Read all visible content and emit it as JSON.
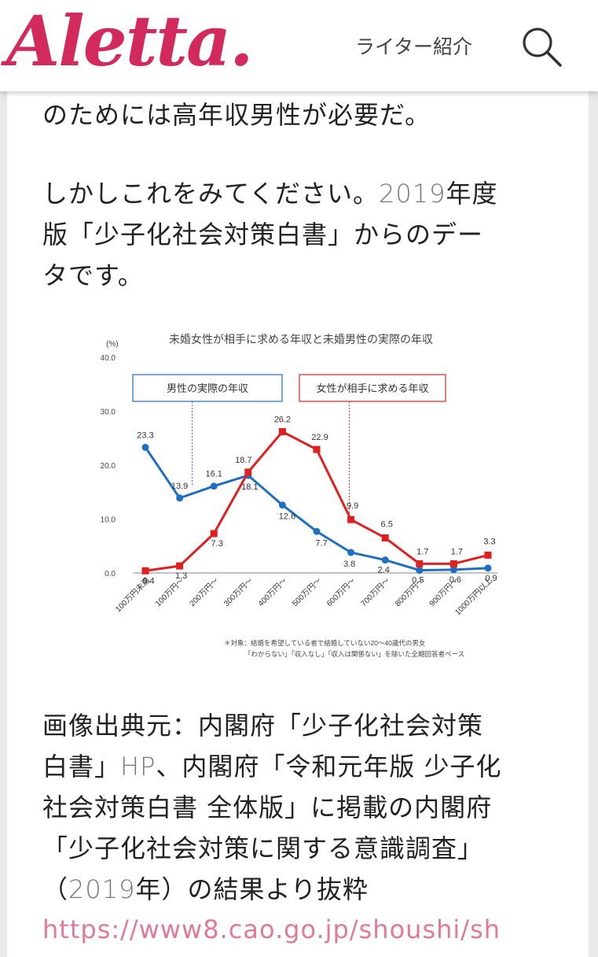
{
  "header": {
    "logo_text": "Aletta.",
    "writer_link": "ライター紹介",
    "search_icon": "search-icon",
    "brand_color": "#d22a5c"
  },
  "article": {
    "para1": "のためには高年収男性が必要だ。",
    "para2_a": "しかしこれをみてください。",
    "para2_year": "2019",
    "para2_b": "年度",
    "para2_line2": "版「少子化社会対策白書」からのデー",
    "para2_line3": "タです。",
    "caption_line1": "画像出典元：内閣府「少子化社会対策",
    "caption_line2_a": "白書」",
    "caption_line2_hp": "HP",
    "caption_line2_b": "、内閣府「令和元年版 少子化",
    "caption_line3": "社会対策白書 全体版」に掲載の内閣府",
    "caption_line4": "「少子化社会対策に関する意識調査」",
    "caption_line5_a": "（",
    "caption_line5_year": "2019",
    "caption_line5_b": "年）の結果より抜粋",
    "url": "https://www8.cao.go.jp/shoushi/sh"
  },
  "chart_data": {
    "type": "line",
    "title": "未婚女性が相手に求める年収と未婚男性の実際の年収",
    "ylabel": "(%)",
    "ylim": [
      0,
      40
    ],
    "yticks": [
      "40.0",
      "30.0",
      "20.0",
      "10.0",
      "0.0"
    ],
    "categories": [
      "100万円未満",
      "100万円〜",
      "200万円〜",
      "300万円〜",
      "400万円〜",
      "500万円〜",
      "600万円〜",
      "700万円〜",
      "800万円〜",
      "900万円〜",
      "1000万円以上"
    ],
    "series": [
      {
        "name": "男性の実際の年収",
        "color": "#1f6fc0",
        "marker": "circle",
        "values": [
          23.3,
          13.9,
          16.1,
          18.1,
          12.6,
          7.7,
          3.8,
          2.4,
          0.5,
          0.6,
          0.9
        ],
        "labels": [
          "23.3",
          "13.9",
          "16.1",
          "18.1",
          "12.6",
          "7.7",
          "3.8",
          "2.4",
          "0.5",
          "0.6",
          "0.9"
        ]
      },
      {
        "name": "女性が相手に求める年収",
        "color": "#e02020",
        "marker": "square",
        "values": [
          0.4,
          1.3,
          7.3,
          18.7,
          26.2,
          22.9,
          9.9,
          6.5,
          1.7,
          1.7,
          3.3
        ],
        "labels": [
          "0.4",
          "1.3",
          "7.3",
          "18.7",
          "26.2",
          "22.9",
          "9.9",
          "6.5",
          "1.7",
          "1.7",
          "3.3"
        ]
      }
    ],
    "footnote_line1": "＊対象：結婚を希望している者で結婚していない20〜40歳代の男女",
    "footnote_line2": "「わからない」「収入なし」「収入は関係ない」を除いた全期回答者ベース",
    "grid": false
  }
}
